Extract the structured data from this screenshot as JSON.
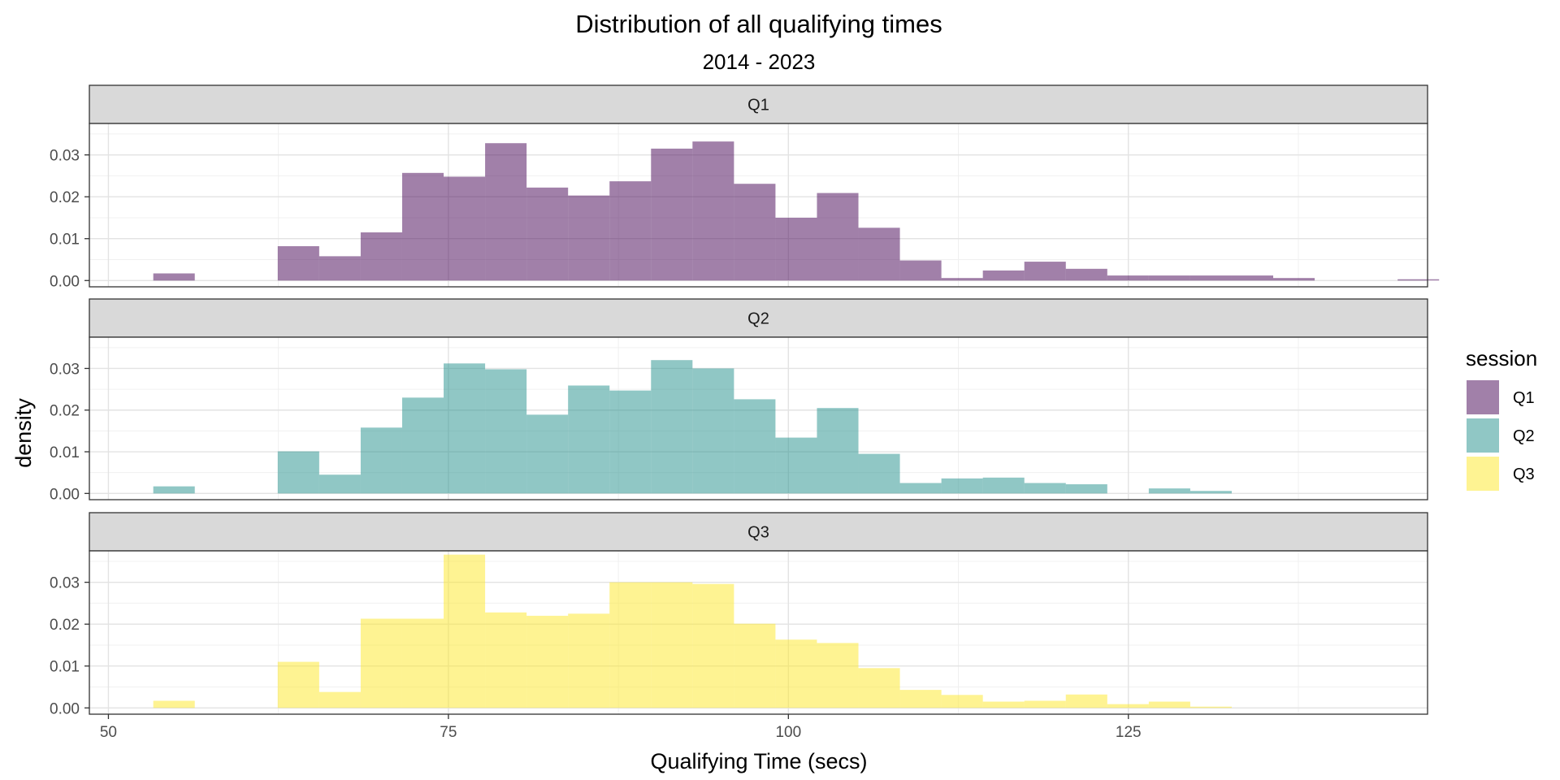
{
  "chart_data": {
    "type": "histogram",
    "title": "Distribution of all qualifying times",
    "subtitle": "2014 - 2023",
    "xlabel": "Qualifying Time (secs)",
    "ylabel": "density",
    "xlim": [
      48.6,
      147.0
    ],
    "ylim": [
      -0.0015,
      0.0375
    ],
    "x_ticks": [
      50,
      75,
      100,
      125
    ],
    "x_tick_labels": [
      "50",
      "75",
      "100",
      "125"
    ],
    "y_ticks": [
      0,
      0.01,
      0.02,
      0.03
    ],
    "y_tick_labels": [
      "0.00",
      "0.01",
      "0.02",
      "0.03"
    ],
    "grid": true,
    "legend": {
      "title": "session",
      "position": "right"
    },
    "bin_width": 3.05,
    "bin_start": 53.3,
    "panels": [
      {
        "name": "Q1",
        "color": "#440154",
        "values": [
          0.0017,
          0,
          0,
          0.0082,
          0.0058,
          0.0115,
          0.0257,
          0.0248,
          0.0328,
          0.0222,
          0.0203,
          0.0237,
          0.0315,
          0.0332,
          0.0231,
          0.015,
          0.0209,
          0.0126,
          0.0048,
          0.0006,
          0.0024,
          0.0045,
          0.0028,
          0.0012,
          0.0012,
          0.0012,
          0.0012,
          0.0006,
          0,
          0,
          0.0003
        ]
      },
      {
        "name": "Q2",
        "color": "#21908C",
        "values": [
          0.0017,
          0,
          0,
          0.0101,
          0.0045,
          0.0158,
          0.023,
          0.0312,
          0.0298,
          0.0189,
          0.0259,
          0.0247,
          0.032,
          0.03,
          0.0226,
          0.0134,
          0.0205,
          0.0095,
          0.0025,
          0.0036,
          0.0038,
          0.0025,
          0.0022,
          0,
          0.0012,
          0.0006
        ]
      },
      {
        "name": "Q3",
        "color": "#FDE725",
        "values": [
          0.0017,
          0,
          0,
          0.011,
          0.0038,
          0.0213,
          0.0213,
          0.0366,
          0.0228,
          0.022,
          0.0225,
          0.03,
          0.03,
          0.0296,
          0.0201,
          0.0163,
          0.0155,
          0.0095,
          0.0043,
          0.0031,
          0.0015,
          0.0017,
          0.0032,
          0.0009,
          0.0015,
          0.0003
        ]
      }
    ]
  }
}
